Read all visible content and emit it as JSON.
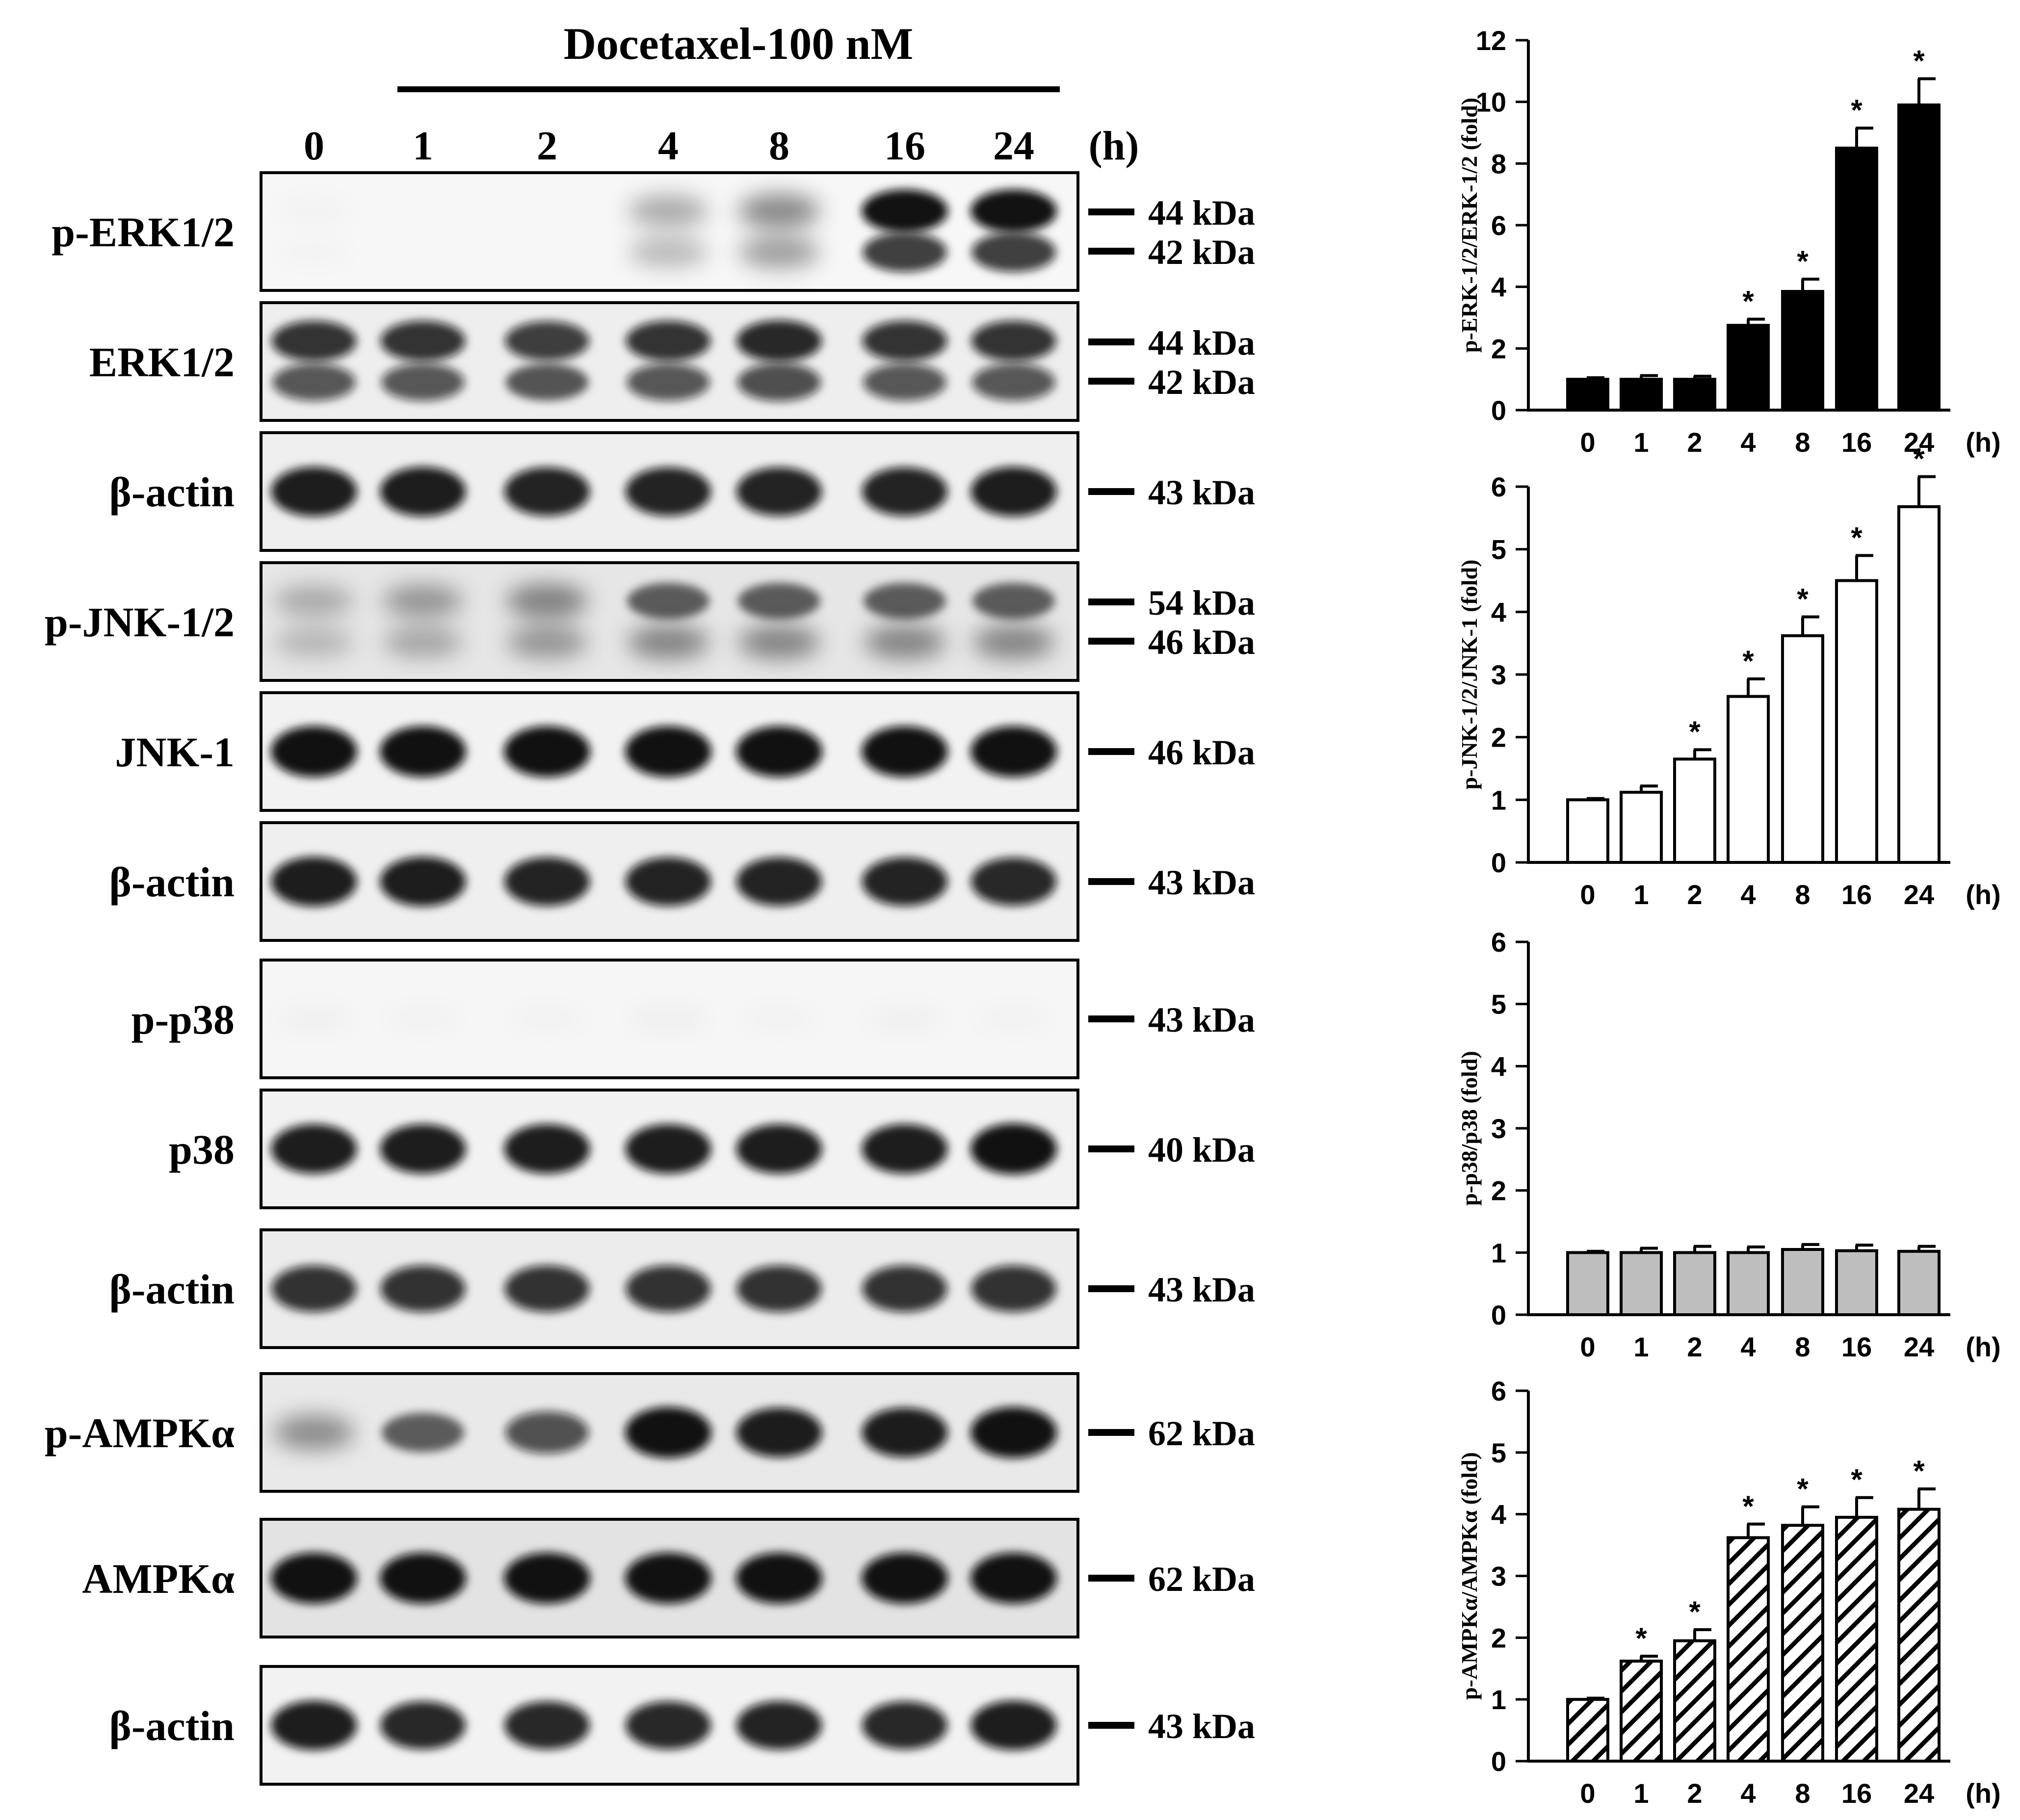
{
  "figure": {
    "treatment_label": "Docetaxel-100 nM",
    "time_unit": "(h)",
    "time_points": [
      "0",
      "1",
      "2",
      "4",
      "8",
      "16",
      "24"
    ],
    "colors": {
      "ink": "#000000",
      "background": "#ffffff",
      "blot_background": "#f4f4f4",
      "gray_bar": "#bebebe"
    }
  },
  "blots": [
    {
      "label": "p-ERK1/2",
      "markers": [
        "44 kDa",
        "42 kDa"
      ],
      "intensity": [
        0.02,
        0.0,
        0.0,
        0.35,
        0.5,
        1.0,
        1.0
      ],
      "bands": 2,
      "bg": "#f7f7f7"
    },
    {
      "label": "ERK1/2",
      "markers": [
        "44 kDa",
        "42 kDa"
      ],
      "intensity": [
        0.85,
        0.85,
        0.8,
        0.85,
        0.9,
        0.85,
        0.85
      ],
      "bands": 2,
      "bg": "#eeeeee"
    },
    {
      "label": "β-actin",
      "markers": [
        "43 kDa"
      ],
      "intensity": [
        0.95,
        0.95,
        0.92,
        0.92,
        0.92,
        0.92,
        0.95
      ],
      "bands": 1,
      "bg": "#efefef"
    },
    {
      "label": "p-JNK-1/2",
      "markers": [
        "54 kDa",
        "46 kDa"
      ],
      "intensity": [
        0.3,
        0.4,
        0.5,
        0.6,
        0.6,
        0.6,
        0.6
      ],
      "bands": 2,
      "bg": "#e6e6e6"
    },
    {
      "label": "JNK-1",
      "markers": [
        "46 kDa"
      ],
      "intensity": [
        1.0,
        1.0,
        1.0,
        1.0,
        1.0,
        1.0,
        1.0
      ],
      "bands": 1,
      "bg": "#f2f2f2"
    },
    {
      "label": "β-actin",
      "markers": [
        "43 kDa"
      ],
      "intensity": [
        0.95,
        0.95,
        0.92,
        0.92,
        0.92,
        0.92,
        0.9
      ],
      "bands": 1,
      "bg": "#efefef"
    },
    {
      "label": "p-p38",
      "markers": [
        "43 kDa"
      ],
      "intensity": [
        0.03,
        0.02,
        0.02,
        0.04,
        0.02,
        0.03,
        0.02
      ],
      "bands": 1,
      "bg": "#f6f6f6"
    },
    {
      "label": "p38",
      "markers": [
        "40 kDa"
      ],
      "intensity": [
        0.95,
        0.95,
        0.95,
        0.95,
        0.95,
        0.95,
        1.0
      ],
      "bands": 1,
      "bg": "#f2f2f2"
    },
    {
      "label": "β-actin",
      "markers": [
        "43 kDa"
      ],
      "intensity": [
        0.85,
        0.85,
        0.85,
        0.85,
        0.85,
        0.85,
        0.85
      ],
      "bands": 1,
      "bg": "#ececec"
    },
    {
      "label": "p-AMPKα",
      "markers": [
        "62 kDa"
      ],
      "intensity": [
        0.45,
        0.6,
        0.7,
        1.0,
        0.95,
        0.95,
        1.0
      ],
      "bands": 1,
      "bg": "#e9e9e9"
    },
    {
      "label": "AMPKα",
      "markers": [
        "62 kDa"
      ],
      "intensity": [
        1.0,
        1.0,
        1.0,
        1.0,
        1.0,
        1.0,
        1.0
      ],
      "bands": 1,
      "bg": "#e3e3e3"
    },
    {
      "label": "β-actin",
      "markers": [
        "43 kDa"
      ],
      "intensity": [
        0.95,
        0.9,
        0.9,
        0.9,
        0.92,
        0.9,
        0.95
      ],
      "bands": 1,
      "bg": "#f2f2f2"
    }
  ],
  "chart_data": [
    {
      "type": "bar",
      "ylabel": "p-ERK-1/2/ERK-1/2 (fold)",
      "categories": [
        "0",
        "1",
        "2",
        "4",
        "8",
        "16",
        "24"
      ],
      "xunit": "(h)",
      "values": [
        1.0,
        1.0,
        1.0,
        2.75,
        3.85,
        8.5,
        9.9
      ],
      "errors": [
        0.05,
        0.12,
        0.1,
        0.2,
        0.4,
        0.65,
        0.85
      ],
      "significance": [
        "",
        "",
        "",
        "*",
        "*",
        "*",
        "*"
      ],
      "ylim": [
        0,
        12
      ],
      "yticks": [
        0,
        2,
        4,
        6,
        8,
        10,
        12
      ],
      "fill": "solid-black"
    },
    {
      "type": "bar",
      "ylabel": "p-JNK-1/2/JNK-1 (fold)",
      "categories": [
        "0",
        "1",
        "2",
        "4",
        "8",
        "16",
        "24"
      ],
      "xunit": "(h)",
      "values": [
        1.0,
        1.12,
        1.65,
        2.65,
        3.62,
        4.5,
        5.68
      ],
      "errors": [
        0.02,
        0.1,
        0.15,
        0.28,
        0.3,
        0.4,
        0.48
      ],
      "significance": [
        "",
        "",
        "*",
        "*",
        "*",
        "*",
        "*"
      ],
      "ylim": [
        0,
        6
      ],
      "yticks": [
        0,
        1,
        2,
        3,
        4,
        5,
        6
      ],
      "fill": "white"
    },
    {
      "type": "bar",
      "ylabel": "p-p38/p38 (fold)",
      "categories": [
        "0",
        "1",
        "2",
        "4",
        "8",
        "16",
        "24"
      ],
      "xunit": "(h)",
      "values": [
        1.0,
        1.0,
        1.0,
        1.0,
        1.05,
        1.03,
        1.02
      ],
      "errors": [
        0.02,
        0.07,
        0.1,
        0.09,
        0.08,
        0.09,
        0.08
      ],
      "significance": [
        "",
        "",
        "",
        "",
        "",
        "",
        ""
      ],
      "ylim": [
        0,
        6
      ],
      "yticks": [
        0,
        1,
        2,
        3,
        4,
        5,
        6
      ],
      "fill": "gray"
    },
    {
      "type": "bar",
      "ylabel": "p-AMPKα/AMPKα (fold)",
      "categories": [
        "0",
        "1",
        "2",
        "4",
        "8",
        "16",
        "24"
      ],
      "xunit": "(h)",
      "values": [
        1.0,
        1.62,
        1.95,
        3.62,
        3.82,
        3.95,
        4.08
      ],
      "errors": [
        0.02,
        0.08,
        0.18,
        0.22,
        0.3,
        0.32,
        0.33
      ],
      "significance": [
        "",
        "*",
        "*",
        "*",
        "*",
        "*",
        "*"
      ],
      "ylim": [
        0,
        6
      ],
      "yticks": [
        0,
        1,
        2,
        3,
        4,
        5,
        6
      ],
      "fill": "hatched"
    }
  ]
}
